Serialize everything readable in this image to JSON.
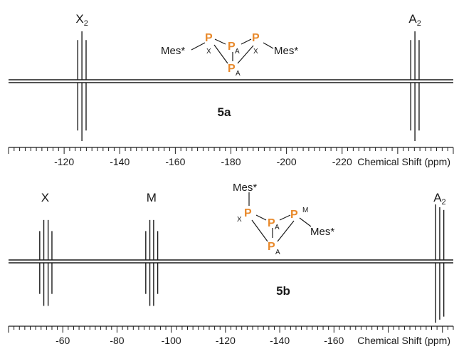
{
  "colors": {
    "phosphorus": "#e8892b",
    "ink": "#1a1a1a"
  },
  "chart_data": [
    {
      "type": "line",
      "title": "5a",
      "xlabel": "Chemical Shift (ppm)",
      "xticks": [
        -120,
        -140,
        -160,
        -180,
        -200,
        -220
      ],
      "xticklabels": [
        "-120",
        "-140",
        "-160",
        "-180",
        "-200",
        "-220"
      ],
      "grid": false,
      "signals": [
        {
          "label": "X",
          "subscript": "2",
          "shift": -126.4,
          "lines": [
            -124.9,
            -126.4,
            -127.9
          ],
          "heights": [
            0.82,
            1.0,
            0.82
          ]
        },
        {
          "label": "A",
          "subscript": "2",
          "shift": -246.2,
          "lines": [
            -244.7,
            -246.2,
            -247.7
          ],
          "heights": [
            0.82,
            1.0,
            0.82
          ]
        }
      ],
      "structure": {
        "substituents": [
          "Mes*",
          "Mes*"
        ],
        "atoms": [
          {
            "element": "P",
            "label": "X"
          },
          {
            "element": "P",
            "label": "A"
          },
          {
            "element": "P",
            "label": "X"
          },
          {
            "element": "P",
            "label": "A"
          }
        ]
      }
    },
    {
      "type": "line",
      "title": "5b",
      "xlabel": "Chemical Shift (ppm)",
      "xticks": [
        -60,
        -80,
        -100,
        -120,
        -140,
        -160
      ],
      "xticklabels": [
        "-60",
        "-80",
        "-100",
        "-120",
        "-140",
        "-160"
      ],
      "grid": false,
      "signals": [
        {
          "label": "X",
          "subscript": "",
          "shift": -53.5,
          "lines": [
            -51.5,
            -53.0,
            -54.6,
            -56.0
          ],
          "heights": [
            0.52,
            0.72,
            0.72,
            0.52
          ]
        },
        {
          "label": "M",
          "subscript": "",
          "shift": -92.7,
          "lines": [
            -90.6,
            -92.1,
            -93.5,
            -95.0
          ],
          "heights": [
            0.52,
            0.72,
            0.72,
            0.52
          ]
        },
        {
          "label": "A",
          "subscript": "2",
          "shift": -199.0,
          "lines": [
            -197.5,
            -199.0,
            -200.5
          ],
          "heights": [
            1.0,
            0.95,
            0.9
          ]
        }
      ],
      "structure": {
        "substituents": [
          "Mes*",
          "Mes*"
        ],
        "atoms": [
          {
            "element": "P",
            "label": "X"
          },
          {
            "element": "P",
            "label": "A"
          },
          {
            "element": "P",
            "label": "M"
          },
          {
            "element": "P",
            "label": "A"
          }
        ]
      }
    }
  ]
}
